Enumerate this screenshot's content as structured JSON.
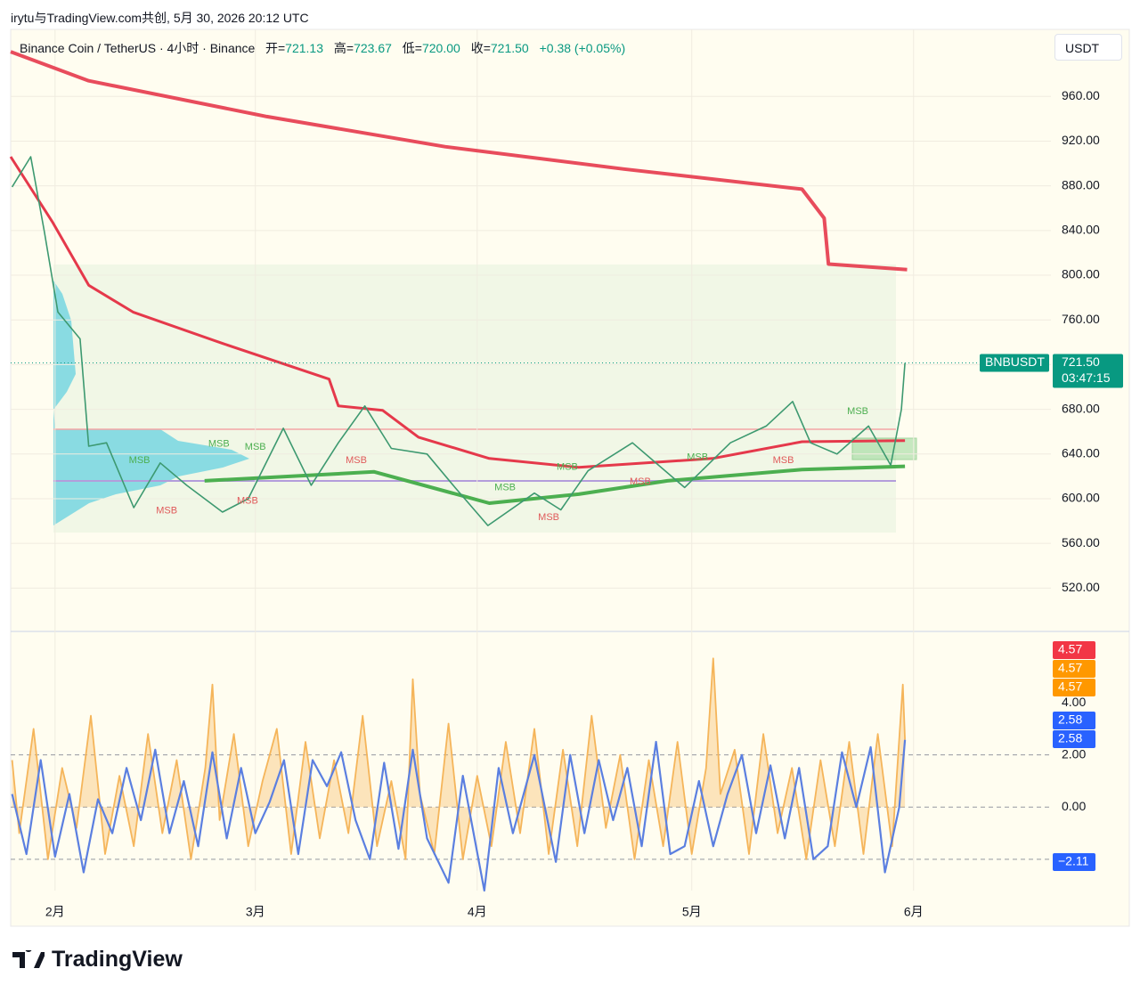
{
  "header": {
    "attribution": "irytu与TradingView.com共创, 5月 30, 2026 20:12 UTC"
  },
  "legend": {
    "symbol": "Binance Coin / TetherUS · 4小时 · Binance",
    "open_label": "开=",
    "open": "721.13",
    "high_label": "高=",
    "high": "723.67",
    "low_label": "低=",
    "low": "720.00",
    "close_label": "收=",
    "close": "721.50",
    "change": "+0.38 (+0.05%)"
  },
  "currency_button": "USDT",
  "main_pane": {
    "xlim": [
      -6.2,
      139.2
    ],
    "xticks": [
      {
        "value": 0,
        "label": "2月"
      },
      {
        "value": 28,
        "label": "3月"
      },
      {
        "value": 59,
        "label": "4月"
      },
      {
        "value": 89,
        "label": "5月"
      },
      {
        "value": 120,
        "label": "6月"
      }
    ],
    "ylim": [
      482,
      1020
    ],
    "yticks": [
      {
        "value": 520,
        "label": "520.00"
      },
      {
        "value": 560,
        "label": "560.00"
      },
      {
        "value": 600,
        "label": "600.00"
      },
      {
        "value": 640,
        "label": "640.00"
      },
      {
        "value": 680,
        "label": "680.00"
      },
      {
        "value": 720,
        "label": "720.00"
      },
      {
        "value": 760,
        "label": "760.00"
      },
      {
        "value": 800,
        "label": "800.00"
      },
      {
        "value": 840,
        "label": "840.00"
      },
      {
        "value": 880,
        "label": "880.00"
      },
      {
        "value": 920,
        "label": "920.00"
      },
      {
        "value": 960,
        "label": "960.00"
      }
    ],
    "last_price": {
      "value": 721.5,
      "symbol": "BNBUSDT",
      "label": "721.50",
      "countdown": "03:47:15",
      "color": "#089981"
    },
    "price": {
      "color": "#3d9970",
      "x": [
        -6,
        -3.4,
        -1.5,
        0.4,
        3.5,
        4.7,
        7.2,
        11,
        14.7,
        18.4,
        23.4,
        27,
        31.9,
        35.8,
        39.6,
        43.3,
        47,
        52,
        55.9,
        60.5,
        67,
        70.7,
        74.5,
        80.7,
        88,
        94.4,
        99.4,
        103.1,
        105.6,
        109.3,
        113.7,
        116.8,
        118.3,
        118.8
      ],
      "values": [
        879,
        906,
        839,
        767,
        743,
        647,
        650,
        592,
        632,
        612,
        588,
        600,
        663,
        612,
        650,
        683,
        645,
        640,
        610,
        576,
        605,
        590,
        625,
        650,
        610,
        650,
        665,
        687,
        650,
        640,
        665,
        630,
        680,
        721.5
      ]
    },
    "upper_band": {
      "color": "#e5394b",
      "x": [
        -6.2,
        4.7,
        29.6,
        54.5,
        79.5,
        104.4,
        107.5,
        108.1,
        119.1
      ],
      "values": [
        1000,
        974,
        942,
        915,
        895,
        877,
        851,
        810,
        805
      ]
    },
    "lower_band": {
      "color": "#e5394b",
      "x": [
        -6.2,
        -0.3,
        4.7,
        10.9,
        23.4,
        38.3,
        39.6,
        45.8,
        50.8,
        60.7,
        73.2,
        91.9,
        104.4,
        118.8
      ],
      "values": [
        906,
        847,
        791,
        767,
        739,
        707,
        683,
        679,
        655,
        636,
        628,
        636,
        651,
        652
      ]
    },
    "support": {
      "color": "#4caf50",
      "x": [
        20.9,
        44.6,
        60.7,
        73.2,
        85.6,
        104.4,
        118.8
      ],
      "values": [
        616,
        624,
        596,
        604,
        616,
        626,
        629
      ]
    },
    "annotations": [
      {
        "text": "MSB",
        "x": 11.8,
        "y": 634,
        "color": "#4caf50"
      },
      {
        "text": "MSB",
        "x": 15.6,
        "y": 589,
        "color": "#e05a5a"
      },
      {
        "text": "MSB",
        "x": 22.9,
        "y": 649,
        "color": "#4caf50"
      },
      {
        "text": "MSB",
        "x": 28,
        "y": 646,
        "color": "#4caf50"
      },
      {
        "text": "MSB",
        "x": 26.9,
        "y": 598,
        "color": "#e05a5a"
      },
      {
        "text": "MSB",
        "x": 42.1,
        "y": 634,
        "color": "#e05a5a"
      },
      {
        "text": "MSB",
        "x": 62.9,
        "y": 610,
        "color": "#4caf50"
      },
      {
        "text": "MSB",
        "x": 71.6,
        "y": 628,
        "color": "#4caf50"
      },
      {
        "text": "MSB",
        "x": 69,
        "y": 583,
        "color": "#e05a5a"
      },
      {
        "text": "MSB",
        "x": 81.8,
        "y": 615,
        "color": "#e05a5a"
      },
      {
        "text": "MSB",
        "x": 89.8,
        "y": 637,
        "color": "#4caf50"
      },
      {
        "text": "MSB",
        "x": 101.8,
        "y": 634,
        "color": "#e05a5a"
      },
      {
        "text": "MSB",
        "x": 112.2,
        "y": 678,
        "color": "#4caf50"
      }
    ]
  },
  "oscillator": {
    "ylim": [
      -3.2,
      6.7
    ],
    "yticks": [
      {
        "value": 0,
        "label": "0.00"
      },
      {
        "value": 2,
        "label": "2.00"
      },
      {
        "value": 4,
        "label": "4.00"
      }
    ],
    "levels": [
      2,
      0,
      -2
    ],
    "fast": {
      "color": "#5b7fe0",
      "x": [
        -6,
        -4,
        -2,
        0,
        2,
        4,
        6,
        8,
        10,
        12,
        14,
        16,
        18,
        20,
        22,
        24,
        26,
        28,
        30,
        32,
        34,
        36,
        38,
        40,
        42,
        44,
        46,
        48,
        50,
        52,
        55,
        57,
        60,
        62,
        64,
        67,
        70,
        72,
        74,
        76,
        78,
        80,
        82,
        84,
        86,
        88,
        90,
        92,
        94,
        96,
        98,
        100,
        102,
        104,
        106,
        108,
        110,
        112,
        114,
        116,
        118,
        118.8
      ],
      "values": [
        0.5,
        -1.8,
        1.8,
        -1.9,
        0.5,
        -2.5,
        0.3,
        -1,
        1.5,
        -0.5,
        2.2,
        -1,
        1,
        -1.5,
        2.1,
        -1.2,
        1.5,
        -1,
        0.2,
        1.8,
        -1.8,
        1.8,
        0.8,
        2.1,
        -0.5,
        -2,
        1.7,
        -1.6,
        2.2,
        -1.2,
        -2.9,
        1.2,
        -3.2,
        1.5,
        -1,
        2,
        -2.1,
        2,
        -1,
        1.8,
        -0.5,
        1.5,
        -1.5,
        2.5,
        -1.8,
        -1.5,
        1,
        -1.5,
        0.5,
        2,
        -1,
        1.6,
        -1.2,
        1.5,
        -2,
        -1.5,
        2.1,
        0,
        2.3,
        -2.5,
        0,
        2.58
      ]
    },
    "slow": {
      "color": "#f5b55a",
      "x": [
        -6,
        -5,
        -3,
        -1,
        1,
        3,
        5,
        7,
        9,
        11,
        13,
        15,
        17,
        19,
        21,
        22,
        23,
        25,
        27,
        29,
        31,
        33,
        35,
        37,
        39,
        41,
        43,
        45,
        47,
        49,
        50,
        51,
        53,
        55,
        57,
        59,
        61,
        63,
        65,
        67,
        69,
        71,
        73,
        75,
        77,
        79,
        81,
        83,
        85,
        87,
        89,
        91,
        92,
        93,
        95,
        97,
        99,
        101,
        103,
        105,
        107,
        109,
        111,
        113,
        115,
        117,
        118.5,
        118.8
      ],
      "values": [
        1.8,
        -1,
        3,
        -2,
        1.5,
        -0.8,
        3.5,
        -1.8,
        1.2,
        -1.5,
        2.8,
        -1,
        1.8,
        -2,
        1.5,
        4.7,
        -0.5,
        2.8,
        -1.5,
        1,
        3,
        -1.8,
        2.5,
        -1.2,
        1.8,
        -1,
        3.5,
        -1.5,
        1,
        -2,
        4.9,
        0.5,
        -1.8,
        3.2,
        -2,
        1.2,
        -1.5,
        2.5,
        -1,
        3,
        -1.8,
        2.2,
        -1.5,
        3.5,
        -0.8,
        2,
        -2,
        1.8,
        -1.5,
        2.5,
        -1.8,
        1.5,
        5.7,
        0.5,
        2.2,
        -1.8,
        2.8,
        -1,
        1.5,
        -2,
        1.8,
        -1.5,
        2.5,
        -1.8,
        2.8,
        -1.5,
        4.7,
        2.58
      ]
    },
    "badges": [
      {
        "value": 4.57,
        "label": "4.57",
        "color": "#f23645"
      },
      {
        "value": 4.57,
        "label": "4.57",
        "color": "#ff9800"
      },
      {
        "value": 4.57,
        "label": "4.57",
        "color": "#ff9800"
      },
      {
        "value": 2.58,
        "label": "2.58",
        "color": "#2962ff"
      },
      {
        "value": 2.58,
        "label": "2.58",
        "color": "#2962ff"
      },
      {
        "value": -2.11,
        "label": "−2.11",
        "color": "#2962ff"
      }
    ]
  },
  "footer": {
    "brand": "TradingView"
  }
}
